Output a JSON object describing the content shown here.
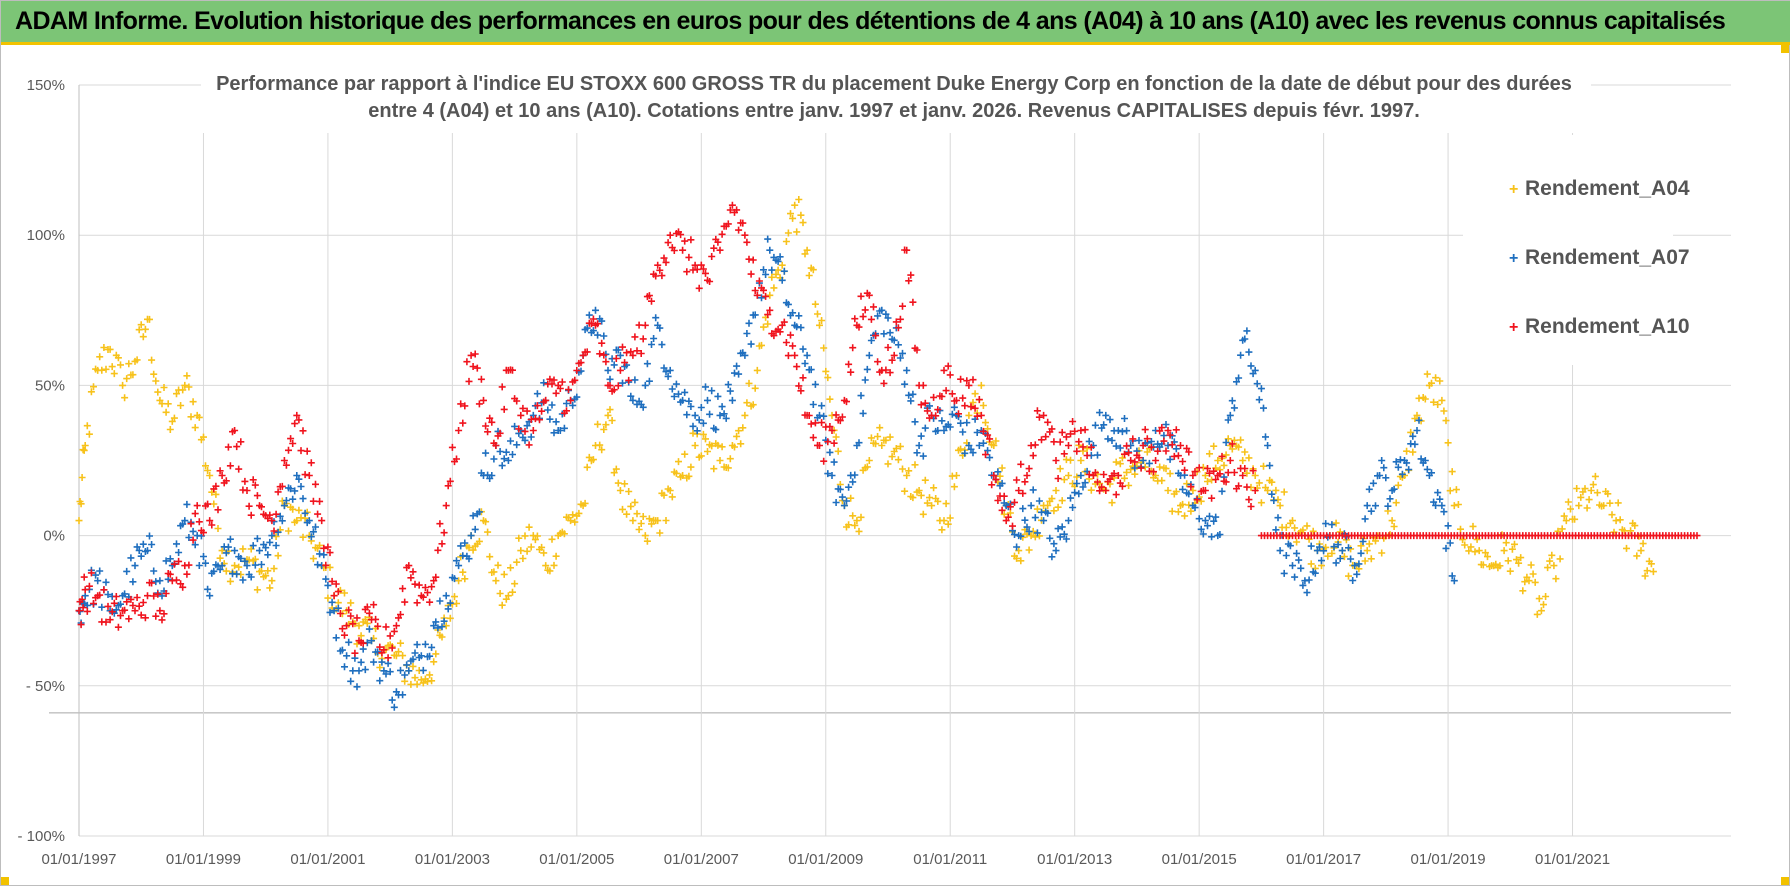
{
  "header": {
    "title": "ADAM Informe. Evolution historique des performances en euros pour des détentions de 4 ans (A04) à 10 ans (A10) avec les revenus connus capitalisés"
  },
  "colors": {
    "banner": "#7cc576",
    "banner_border": "#f2c200",
    "grid": "#d9d9d9",
    "A04": "#f7c21b",
    "A07": "#1f6fbf",
    "A10": "#f0141e"
  },
  "chart_data": {
    "type": "scatter",
    "title_line1": "Performance par rapport à l'indice EU STOXX 600 GROSS TR  du placement Duke Energy Corp en fonction de la date de début pour des durées",
    "title_line2": "entre 4 (A04) et 10 ans (A10).  Cotations entre janv. 1997 et janv. 2026. Revenus CAPITALISES depuis févr. 1997.",
    "xlabel": "",
    "ylabel": "",
    "x_range": [
      1997.0,
      2023.0
    ],
    "ylim": [
      -100,
      150
    ],
    "y_ticks": [
      150,
      100,
      50,
      0,
      -50,
      -100
    ],
    "y_tick_labels": [
      "150%",
      "100%",
      "50%",
      "0%",
      "- 50%",
      "- 100%"
    ],
    "x_ticks": [
      1997,
      1999,
      2001,
      2003,
      2005,
      2007,
      2009,
      2011,
      2013,
      2015,
      2017,
      2019,
      2021
    ],
    "x_tick_labels": [
      "01/01/1997",
      "01/01/1999",
      "01/01/2001",
      "01/01/2003",
      "01/01/2005",
      "01/01/2007",
      "01/01/2009",
      "01/01/2011",
      "01/01/2013",
      "01/01/2015",
      "01/01/2017",
      "01/01/2019",
      "01/01/2021"
    ],
    "grid": true,
    "legend_position": "top-right",
    "marker": "+",
    "series": [
      {
        "name": "Rendement_A04",
        "color": "#f7c21b",
        "x": [
          1997.0,
          1997.1,
          1997.3,
          1997.5,
          1997.7,
          1997.9,
          1998.1,
          1998.3,
          1998.5,
          1998.7,
          1998.9,
          1999.1,
          1999.3,
          1999.5,
          1999.7,
          1999.9,
          2000.1,
          2000.3,
          2000.5,
          2000.7,
          2000.9,
          2001.1,
          2001.3,
          2001.5,
          2001.7,
          2001.9,
          2002.1,
          2002.3,
          2002.5,
          2002.7,
          2002.9,
          2003.1,
          2003.3,
          2003.5,
          2003.7,
          2003.9,
          2004.1,
          2004.3,
          2004.5,
          2004.7,
          2004.9,
          2005.1,
          2005.3,
          2005.5,
          2005.7,
          2005.9,
          2006.1,
          2006.3,
          2006.5,
          2006.7,
          2006.9,
          2007.1,
          2007.3,
          2007.5,
          2007.7,
          2007.9,
          2008.1,
          2008.3,
          2008.5,
          2008.7,
          2008.9,
          2009.1,
          2009.3,
          2009.5,
          2009.7,
          2009.9,
          2010.1,
          2010.3,
          2010.5,
          2010.7,
          2010.9,
          2011.1,
          2011.3,
          2011.5,
          2011.7,
          2011.9,
          2012.1,
          2012.3,
          2012.5,
          2012.7,
          2012.9,
          2013.1,
          2013.3,
          2013.5,
          2013.7,
          2013.9,
          2014.1,
          2014.3,
          2014.5,
          2014.7,
          2014.9,
          2015.1,
          2015.3,
          2015.5,
          2015.7,
          2015.9,
          2016.1,
          2016.3,
          2016.5,
          2016.7,
          2016.9,
          2017.1,
          2017.3,
          2017.5,
          2017.7,
          2017.9,
          2018.1,
          2018.3,
          2018.5,
          2018.7,
          2018.9,
          2019.1,
          2019.3,
          2019.5,
          2019.7,
          2019.9,
          2020.1,
          2020.3,
          2020.5,
          2020.7,
          2020.9,
          2021.1,
          2021.3,
          2021.5,
          2021.7,
          2021.9,
          2022.1,
          2022.3
        ],
        "values": [
          5,
          30,
          55,
          62,
          50,
          58,
          72,
          45,
          38,
          50,
          40,
          20,
          -5,
          -10,
          -8,
          -12,
          -15,
          10,
          5,
          0,
          -10,
          -20,
          -25,
          -30,
          -35,
          -38,
          -40,
          -45,
          -48,
          -42,
          -30,
          -15,
          0,
          5,
          -15,
          -20,
          -5,
          0,
          -10,
          0,
          5,
          10,
          30,
          40,
          15,
          5,
          0,
          5,
          15,
          20,
          30,
          28,
          25,
          30,
          40,
          55,
          80,
          90,
          110,
          95,
          70,
          40,
          10,
          5,
          25,
          30,
          28,
          20,
          15,
          10,
          5,
          20,
          40,
          50,
          30,
          10,
          -5,
          0,
          10,
          15,
          20,
          25,
          20,
          15,
          20,
          22,
          25,
          20,
          15,
          10,
          15,
          20,
          25,
          30,
          25,
          20,
          15,
          10,
          5,
          0,
          -5,
          0,
          -5,
          -10,
          -5,
          0,
          5,
          20,
          40,
          50,
          45,
          10,
          0,
          -5,
          -10,
          -5,
          -8,
          -15,
          -25,
          -10,
          5,
          10,
          15,
          10,
          5,
          0,
          -5,
          -12
        ]
      },
      {
        "name": "Rendement_A07",
        "color": "#1f6fbf",
        "x": [
          1997.0,
          1997.1,
          1997.3,
          1997.5,
          1997.7,
          1997.9,
          1998.1,
          1998.3,
          1998.5,
          1998.7,
          1998.9,
          1999.1,
          1999.3,
          1999.5,
          1999.7,
          1999.9,
          2000.1,
          2000.3,
          2000.5,
          2000.7,
          2000.9,
          2001.1,
          2001.3,
          2001.5,
          2001.7,
          2001.9,
          2002.1,
          2002.3,
          2002.5,
          2002.7,
          2002.9,
          2003.1,
          2003.3,
          2003.5,
          2003.7,
          2003.9,
          2004.1,
          2004.3,
          2004.5,
          2004.7,
          2004.9,
          2005.1,
          2005.3,
          2005.5,
          2005.7,
          2005.9,
          2006.1,
          2006.3,
          2006.5,
          2006.7,
          2006.9,
          2007.1,
          2007.3,
          2007.5,
          2007.7,
          2007.9,
          2008.1,
          2008.3,
          2008.5,
          2008.7,
          2008.9,
          2009.1,
          2009.3,
          2009.5,
          2009.7,
          2009.9,
          2010.1,
          2010.3,
          2010.5,
          2010.7,
          2010.9,
          2011.1,
          2011.3,
          2011.5,
          2011.7,
          2011.9,
          2012.1,
          2012.3,
          2012.5,
          2012.7,
          2012.9,
          2013.1,
          2013.3,
          2013.5,
          2013.7,
          2013.9,
          2014.1,
          2014.3,
          2014.5,
          2014.7,
          2014.9,
          2015.1,
          2015.3,
          2015.5,
          2015.7,
          2015.9,
          2016.1,
          2016.3,
          2016.5,
          2016.7,
          2016.9,
          2017.1,
          2017.3,
          2017.5,
          2017.7,
          2017.9,
          2018.1,
          2018.3,
          2018.5,
          2018.7,
          2018.9,
          2019.1
        ],
        "values": [
          -25,
          -20,
          -15,
          -25,
          -20,
          -10,
          -5,
          -15,
          -10,
          5,
          0,
          -20,
          -10,
          -5,
          -10,
          -5,
          0,
          10,
          20,
          5,
          -10,
          -25,
          -40,
          -45,
          -35,
          -45,
          -52,
          -45,
          -40,
          -30,
          -20,
          -10,
          0,
          20,
          30,
          25,
          35,
          40,
          45,
          35,
          45,
          60,
          75,
          55,
          60,
          45,
          50,
          70,
          55,
          45,
          40,
          45,
          40,
          45,
          60,
          80,
          95,
          85,
          70,
          60,
          40,
          20,
          10,
          30,
          60,
          75,
          65,
          55,
          30,
          40,
          35,
          40,
          30,
          35,
          20,
          10,
          0,
          10,
          5,
          -5,
          5,
          20,
          30,
          40,
          35,
          30,
          25,
          35,
          30,
          20,
          10,
          5,
          0,
          40,
          65,
          55,
          30,
          -5,
          -10,
          -15,
          -5,
          0,
          -5,
          -10,
          10,
          20,
          15,
          25,
          35,
          20,
          10,
          -15
        ]
      },
      {
        "name": "Rendement_A10",
        "color": "#f0141e",
        "x": [
          1997.0,
          1997.1,
          1997.3,
          1997.5,
          1997.7,
          1997.9,
          1998.1,
          1998.3,
          1998.5,
          1998.7,
          1998.9,
          1999.1,
          1999.3,
          1999.5,
          1999.7,
          1999.9,
          2000.1,
          2000.3,
          2000.5,
          2000.7,
          2000.9,
          2001.1,
          2001.3,
          2001.5,
          2001.7,
          2001.9,
          2002.1,
          2002.3,
          2002.5,
          2002.7,
          2002.9,
          2003.1,
          2003.3,
          2003.5,
          2003.7,
          2003.9,
          2004.1,
          2004.3,
          2004.5,
          2004.7,
          2004.9,
          2005.1,
          2005.3,
          2005.5,
          2005.7,
          2005.9,
          2006.1,
          2006.3,
          2006.5,
          2006.7,
          2006.9,
          2007.1,
          2007.3,
          2007.5,
          2007.7,
          2007.9,
          2008.1,
          2008.3,
          2008.5,
          2008.7,
          2008.9,
          2009.1,
          2009.3,
          2009.5,
          2009.7,
          2009.9,
          2010.1,
          2010.3,
          2010.5,
          2010.7,
          2010.9,
          2011.1,
          2011.3,
          2011.5,
          2011.7,
          2011.9,
          2012.1,
          2012.3,
          2012.5,
          2012.7,
          2012.9,
          2013.1,
          2013.3,
          2013.5,
          2013.7,
          2013.9,
          2014.1,
          2014.3,
          2014.5,
          2014.7,
          2014.9,
          2015.1,
          2015.3,
          2015.5,
          2015.7,
          2015.9
        ],
        "values": [
          -25,
          -18,
          -20,
          -28,
          -25,
          -25,
          -20,
          -25,
          -15,
          -10,
          10,
          5,
          20,
          35,
          15,
          10,
          5,
          25,
          40,
          20,
          5,
          -20,
          -30,
          -35,
          -28,
          -38,
          -30,
          -10,
          -20,
          -15,
          10,
          35,
          60,
          45,
          30,
          55,
          40,
          35,
          45,
          50,
          45,
          60,
          70,
          50,
          55,
          60,
          70,
          90,
          100,
          95,
          90,
          85,
          95,
          110,
          100,
          80,
          75,
          70,
          60,
          40,
          30,
          35,
          45,
          70,
          80,
          55,
          60,
          95,
          50,
          40,
          55,
          45,
          50,
          40,
          20,
          5,
          15,
          30,
          40,
          25,
          30,
          35,
          20,
          15,
          20,
          25,
          30,
          25,
          35,
          30,
          20,
          15,
          20,
          25,
          20,
          15
        ]
      }
    ],
    "flat_series": {
      "name": "Rendement_A10",
      "x_start": 2016.0,
      "x_end": 2023.0,
      "value": 0
    }
  }
}
